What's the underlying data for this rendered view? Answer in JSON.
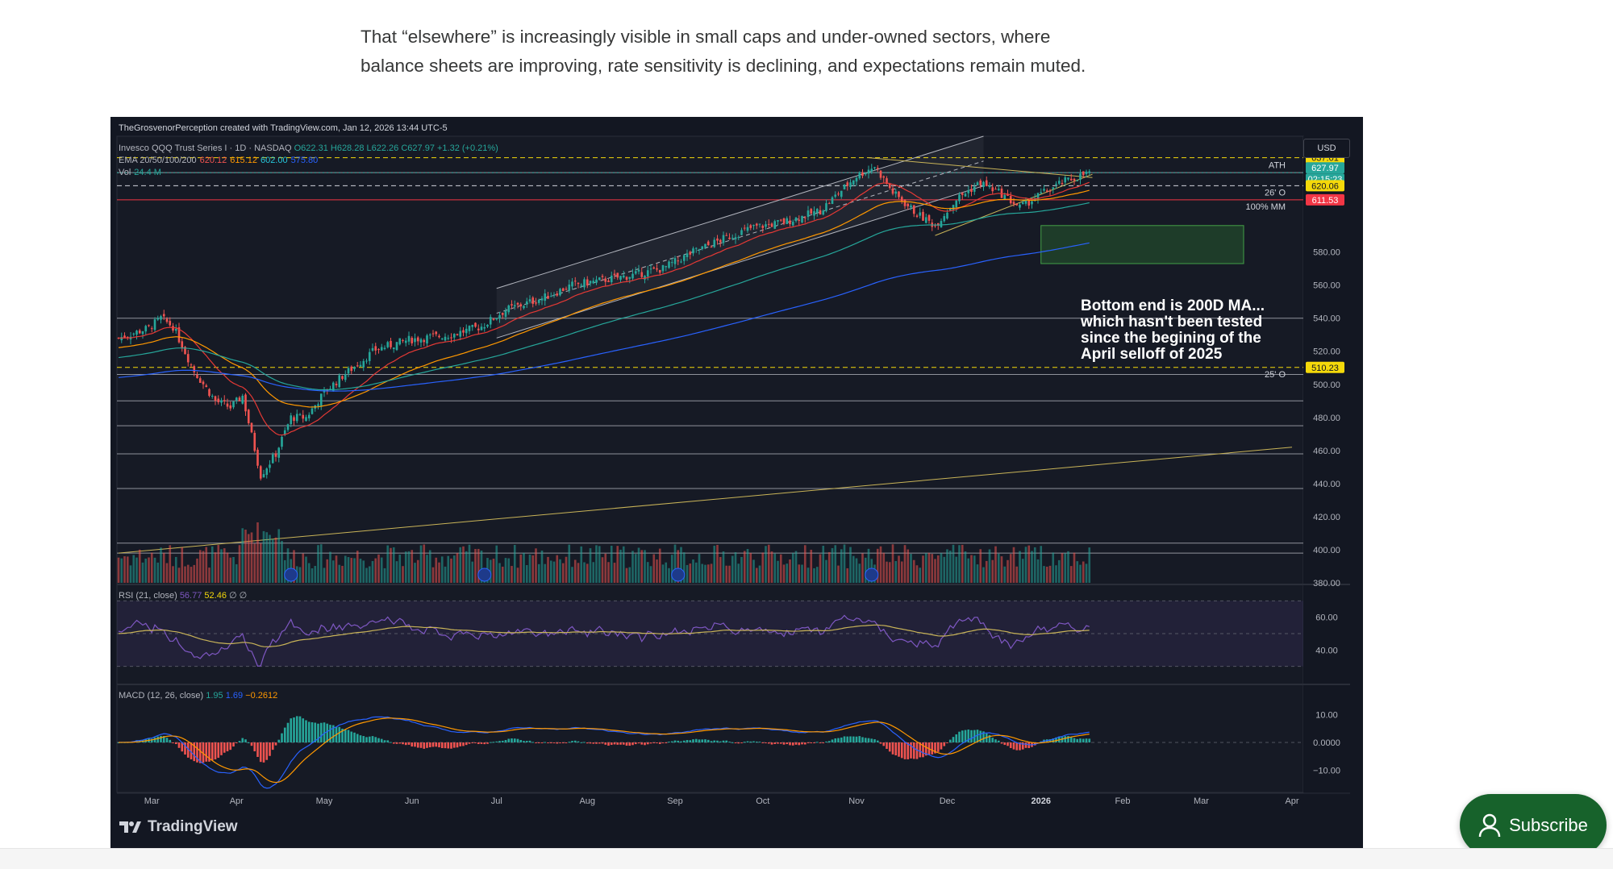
{
  "article": {
    "line1": "That “elsewhere” is increasingly visible in small caps and under-owned sectors, where",
    "line2": "balance sheets are improving, rate sensitivity is declining, and expectations remain muted."
  },
  "chart_meta": "TheGrosvenorPerception created with TradingView.com, Jan 12, 2026 13:44 UTC-5",
  "legend": {
    "symbol": "Invesco QQQ Trust Series I · 1D · NASDAQ",
    "ohlc": "O622.31 H628.28 L622.26 C627.97 +1.32 (+0.21%)",
    "ema_label": "EMA 20/50/100/200",
    "ema_values": [
      "620.12",
      "615.12",
      "602.00",
      "575.80"
    ],
    "vol_label": "Vol",
    "vol_value": "24.4 M"
  },
  "currency": "USD",
  "annotation": {
    "line1": "Bottom end is 200D MA...",
    "line2": "which hasn't been tested",
    "line3": "since the begining of the",
    "line4": "April selloff of 2025"
  },
  "level_labels": {
    "ath": "ATH",
    "q26": "26' O",
    "mm": "100% MM",
    "q25": "25' O"
  },
  "price_badges": [
    {
      "text": "637.01",
      "color": "#f5d90a",
      "text_color": "#131722"
    },
    {
      "text": "627.97",
      "color": "#26a69a",
      "text_color": "#ffffff"
    },
    {
      "text": "02:15:23",
      "color": "#26a69a",
      "text_color": "#ffffff"
    },
    {
      "text": "620.06",
      "color": "#f5d90a",
      "text_color": "#131722"
    },
    {
      "text": "611.53",
      "color": "#f23645",
      "text_color": "#ffffff"
    },
    {
      "text": "510.23",
      "color": "#f5d90a",
      "text_color": "#131722"
    }
  ],
  "rsi": {
    "label": "RSI (21, close)",
    "v1": "56.77",
    "v2": "52.46",
    "axis": [
      "60.00",
      "40.00"
    ]
  },
  "macd": {
    "label": "MACD (12, 26, close)",
    "v1": "1.95",
    "v2": "1.69",
    "v3": "−0.2612",
    "axis": [
      "10.00",
      "0.0000",
      "−10.00"
    ]
  },
  "brand": "TradingView",
  "subscribe_label": "Subscribe",
  "colors": {
    "up": "#26a69a",
    "down": "#ef5350",
    "bg": "#131722",
    "accent": "#17622b"
  },
  "chart_data": {
    "type": "candlestick",
    "title": "Invesco QQQ Trust Series I · 1D · NASDAQ",
    "ylim": [
      380,
      650
    ],
    "y_ticks": [
      580,
      560,
      540,
      520,
      500,
      480,
      460,
      440,
      420,
      400,
      380
    ],
    "y_tick_labels": [
      "580.00",
      "560.00",
      "540.00",
      "520.00",
      "500.00",
      "480.00",
      "460.00",
      "440.00",
      "420.00",
      "400.00",
      "380.00"
    ],
    "x_ticks": [
      {
        "label": "Mar",
        "day": 11
      },
      {
        "label": "Apr",
        "day": 39
      },
      {
        "label": "May",
        "day": 68
      },
      {
        "label": "Jun",
        "day": 97
      },
      {
        "label": "Jul",
        "day": 125
      },
      {
        "label": "Aug",
        "day": 155
      },
      {
        "label": "Sep",
        "day": 184
      },
      {
        "label": "Oct",
        "day": 213
      },
      {
        "label": "Nov",
        "day": 244
      },
      {
        "label": "Dec",
        "day": 274
      },
      {
        "label": "2026",
        "day": 305
      },
      {
        "label": "Feb",
        "day": 332
      },
      {
        "label": "Mar",
        "day": 358
      },
      {
        "label": "Apr",
        "day": 388
      }
    ],
    "last_day": 321,
    "price_path": [
      [
        0,
        528
      ],
      [
        10,
        534
      ],
      [
        14,
        540
      ],
      [
        18,
        535
      ],
      [
        25,
        508
      ],
      [
        32,
        490
      ],
      [
        37,
        486
      ],
      [
        41,
        493
      ],
      [
        47,
        445
      ],
      [
        52,
        458
      ],
      [
        57,
        480
      ],
      [
        62,
        480
      ],
      [
        68,
        495
      ],
      [
        74,
        505
      ],
      [
        85,
        521
      ],
      [
        96,
        527
      ],
      [
        110,
        530
      ],
      [
        120,
        535
      ],
      [
        128,
        545
      ],
      [
        140,
        552
      ],
      [
        150,
        560
      ],
      [
        160,
        563
      ],
      [
        170,
        566
      ],
      [
        180,
        570
      ],
      [
        190,
        580
      ],
      [
        200,
        588
      ],
      [
        210,
        595
      ],
      [
        220,
        598
      ],
      [
        232,
        605
      ],
      [
        244,
        626
      ],
      [
        250,
        632
      ],
      [
        256,
        616
      ],
      [
        264,
        603
      ],
      [
        270,
        596
      ],
      [
        277,
        612
      ],
      [
        285,
        622
      ],
      [
        292,
        615
      ],
      [
        298,
        607
      ],
      [
        305,
        615
      ],
      [
        312,
        622
      ],
      [
        318,
        626
      ],
      [
        321,
        628
      ]
    ],
    "ema_colors": [
      "#e53935",
      "#ff9800",
      "#26a69a",
      "#2962ff"
    ],
    "ema_lengths": [
      20,
      50,
      100,
      200
    ],
    "levels": [
      {
        "name": "ATH",
        "price": 637.01,
        "style": "dash",
        "color": "#f5d90a"
      },
      {
        "name": "last",
        "price": 627.97,
        "style": "dot",
        "color": "#26a69a"
      },
      {
        "name": "26' O",
        "price": 620.06,
        "style": "dash",
        "color": "#d1d4dc"
      },
      {
        "name": "100% MM",
        "price": 611.53,
        "style": "solid",
        "color": "#f23645"
      },
      {
        "name": "25' O",
        "price": 510.23,
        "style": "dash",
        "color": "#f5d90a"
      }
    ],
    "horizontal_lines": [
      628,
      540,
      506,
      490,
      475,
      458,
      437,
      404,
      398
    ],
    "target_zone": {
      "day_from": 305,
      "day_to": 372,
      "price_from": 573,
      "price_to": 596
    }
  }
}
